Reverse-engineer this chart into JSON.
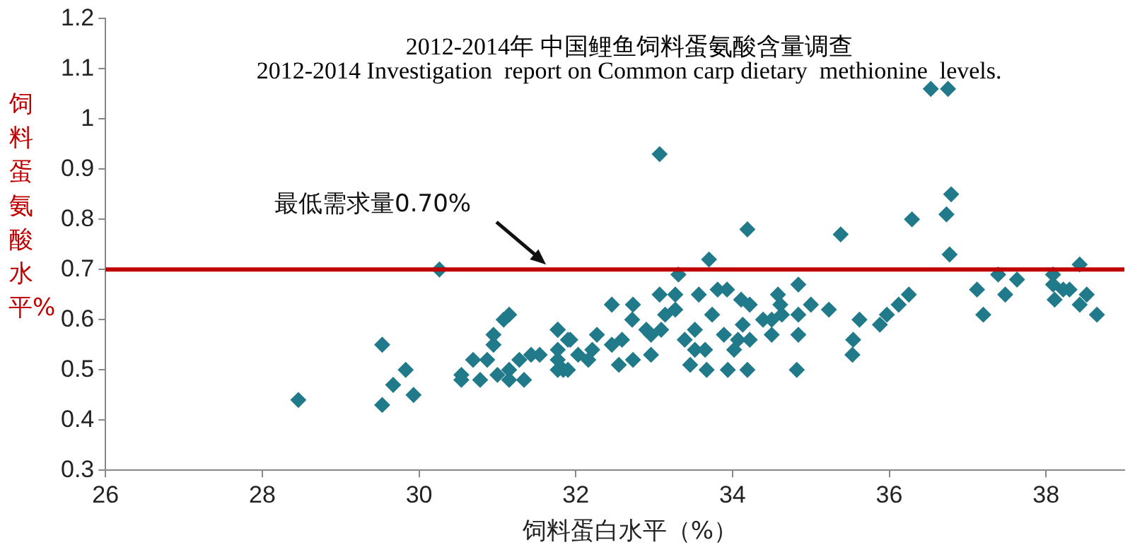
{
  "chart_data": {
    "type": "scatter",
    "title": "2012-2014年 中国鲤鱼饲料蛋氨酸含量调查",
    "subtitle": "2012-2014 Investigation  report on Common carp dietary  methionine  levels.",
    "xlabel": "饲料蛋白水平（%）",
    "ylabel": "饲料蛋氨酸水平%",
    "xlim": [
      26,
      39
    ],
    "xticks": [
      26,
      28,
      30,
      32,
      34,
      36,
      38
    ],
    "ylim": [
      0.3,
      1.2
    ],
    "yticks": [
      0.3,
      0.4,
      0.5,
      0.6,
      0.7,
      0.8,
      0.9,
      1,
      1.1,
      1.2
    ],
    "grid": false,
    "legend": false,
    "marker": "diamond",
    "ref_lines": [
      {
        "axis": "y",
        "value": 0.7,
        "label": null,
        "color": "#c00000"
      }
    ],
    "annotations": [
      {
        "text": "最低需求量0.70%",
        "x": 31.62,
        "y": 0.71
      }
    ],
    "series": [
      {
        "color": "#217a8a",
        "x": [
          28.46,
          29.53,
          29.53,
          29.67,
          29.83,
          29.93,
          30.26,
          30.54,
          30.54,
          30.69,
          30.78,
          30.87,
          30.95,
          30.95,
          31.08,
          31.15,
          31.0,
          31.15,
          31.15,
          31.28,
          31.34,
          31.43,
          31.54,
          31.77,
          31.77,
          31.84,
          31.93,
          31.77,
          33.07,
          34.19,
          33.7,
          33.31,
          34.84,
          35.0,
          35.23,
          34.84,
          34.84,
          34.82,
          34.19,
          33.94,
          33.67,
          33.46,
          31.77,
          31.77,
          32.46,
          32.73,
          33.07,
          33.27,
          33.57,
          33.81,
          33.93,
          34.11,
          34.22,
          34.58,
          34.61,
          34.39,
          34.5,
          34.13,
          33.89,
          33.52,
          33.27,
          33.14,
          32.96,
          32.96,
          32.72,
          32.59,
          32.46,
          32.27,
          32.21,
          32.55,
          32.73,
          32.03,
          31.9,
          31.9,
          32.16,
          33.39,
          33.52,
          33.65,
          33.74,
          34.07,
          34.02,
          34.22,
          34.5,
          34.63,
          32.9,
          33.09,
          35.38,
          36.29,
          36.73,
          36.79,
          36.77,
          36.53,
          36.75,
          35.53,
          35.54,
          35.62,
          35.88,
          35.97,
          36.12,
          36.25,
          37.12,
          37.2,
          37.39,
          37.48,
          37.63,
          38.09,
          38.09,
          38.11,
          38.22,
          38.3,
          38.43,
          38.43,
          38.52,
          38.65
        ],
        "values": [
          0.44,
          0.55,
          0.43,
          0.47,
          0.5,
          0.45,
          0.7,
          0.49,
          0.48,
          0.52,
          0.48,
          0.52,
          0.57,
          0.55,
          0.6,
          0.61,
          0.49,
          0.5,
          0.48,
          0.52,
          0.48,
          0.53,
          0.53,
          0.58,
          0.52,
          0.5,
          0.56,
          0.54,
          0.93,
          0.78,
          0.72,
          0.69,
          0.67,
          0.63,
          0.62,
          0.61,
          0.57,
          0.5,
          0.5,
          0.5,
          0.5,
          0.51,
          0.5,
          0.58,
          0.63,
          0.63,
          0.65,
          0.65,
          0.65,
          0.66,
          0.66,
          0.64,
          0.63,
          0.65,
          0.63,
          0.6,
          0.57,
          0.59,
          0.57,
          0.58,
          0.62,
          0.61,
          0.57,
          0.53,
          0.6,
          0.56,
          0.55,
          0.57,
          0.54,
          0.51,
          0.52,
          0.53,
          0.56,
          0.5,
          0.52,
          0.56,
          0.54,
          0.54,
          0.61,
          0.56,
          0.54,
          0.56,
          0.6,
          0.61,
          0.58,
          0.58,
          0.77,
          0.8,
          0.81,
          0.85,
          0.73,
          1.06,
          1.06,
          0.53,
          0.56,
          0.6,
          0.59,
          0.61,
          0.63,
          0.65,
          0.66,
          0.61,
          0.69,
          0.65,
          0.68,
          0.69,
          0.67,
          0.64,
          0.66,
          0.66,
          0.71,
          0.63,
          0.65,
          0.61
        ]
      }
    ]
  }
}
